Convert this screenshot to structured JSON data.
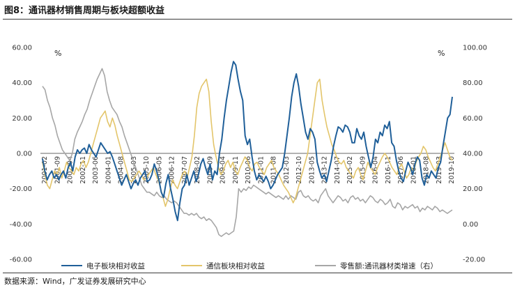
{
  "title": "图8：通讯器材销售周期与板块超额收益",
  "source": "数据来源：Wind，广发证券发展研究中心",
  "chart_data": {
    "type": "line",
    "left_unit": "%",
    "right_unit": "%",
    "left_ticks": [
      "60.00",
      "40.00",
      "20.00",
      "0.00",
      "-20.00",
      "-40.00",
      "-60.00"
    ],
    "right_ticks": [
      "100.00",
      "80.00",
      "60.00",
      "40.00",
      "20.00",
      "0.00",
      "-20.00"
    ],
    "ylim_left": [
      -60,
      60
    ],
    "ylim_right": [
      -20,
      100
    ],
    "x_labels": [
      "2001-02",
      "2001-09",
      "2002-04",
      "2002-11",
      "2003-06",
      "2004-01",
      "2004-08",
      "2005-03",
      "2005-10",
      "2006-05",
      "2006-12",
      "2007-07",
      "2008-02",
      "2008-09",
      "2009-04",
      "2009-11",
      "2010-06",
      "2011-01",
      "2011-08",
      "2012-03",
      "2012-10",
      "2013-05",
      "2013-12",
      "2014-07",
      "2015-02",
      "2015-09",
      "2016-04",
      "2016-11",
      "2017-06",
      "2018-01",
      "2018-08",
      "2019-03",
      "2019-10"
    ],
    "series": [
      {
        "name": "电子板块相对收益",
        "axis": "left",
        "color": "#1f5f99",
        "values": [
          -3,
          -10,
          -15,
          -12,
          -10,
          -14,
          -12,
          -15,
          -12,
          -10,
          -14,
          -8,
          -5,
          -10,
          -2,
          2,
          0,
          2,
          3,
          0,
          5,
          2,
          0,
          -2,
          2,
          6,
          4,
          2,
          0,
          1,
          -2,
          -6,
          -10,
          -14,
          -18,
          -15,
          -12,
          -16,
          -20,
          -17,
          -15,
          -18,
          -14,
          -12,
          -10,
          -16,
          -15,
          -12,
          -6,
          -10,
          -15,
          -22,
          -25,
          -17,
          -12,
          -20,
          -26,
          -33,
          -38,
          -28,
          -20,
          -18,
          -12,
          -18,
          -14,
          -10,
          -16,
          -12,
          -6,
          -3,
          -8,
          -12,
          -6,
          -15,
          -10,
          -12,
          0,
          8,
          20,
          30,
          38,
          46,
          52,
          50,
          42,
          35,
          30,
          10,
          5,
          8,
          -2,
          -10,
          -15,
          -12,
          -14,
          -16,
          -13,
          -16,
          -20,
          -18,
          -15,
          -12,
          -10,
          -8,
          0,
          10,
          20,
          32,
          40,
          45,
          38,
          28,
          20,
          12,
          8,
          14,
          12,
          8,
          -5,
          -10,
          -14,
          -12,
          -16,
          -10,
          -4,
          4,
          10,
          15,
          14,
          12,
          16,
          15,
          12,
          6,
          6,
          14,
          10,
          8,
          12,
          4,
          -2,
          -8,
          -2,
          8,
          6,
          12,
          10,
          16,
          14,
          18,
          6,
          4,
          -4,
          -10,
          -14,
          -16,
          -10,
          -5,
          -8,
          -12,
          -6,
          -2,
          -4,
          -14,
          -18,
          -12,
          -14,
          -10,
          -12,
          -14,
          -8,
          -5,
          4,
          12,
          20,
          22,
          32
        ]
      },
      {
        "name": "通信板块相对收益",
        "axis": "left",
        "color": "#e3c56a",
        "values": [
          -5,
          -12,
          -18,
          -20,
          -15,
          -10,
          -12,
          -8,
          -14,
          -10,
          -5,
          -8,
          -10,
          -12,
          -8,
          -10,
          -6,
          -4,
          -8,
          -5,
          0,
          5,
          10,
          15,
          20,
          22,
          24,
          18,
          15,
          20,
          16,
          10,
          5,
          0,
          -5,
          -10,
          -15,
          -16,
          -14,
          -12,
          -10,
          -12,
          -15,
          -14,
          -12,
          -10,
          -8,
          -12,
          -15,
          -20,
          -25,
          -30,
          -26,
          -20,
          -15,
          -18,
          -20,
          -16,
          -12,
          -10,
          -14,
          -8,
          -2,
          10,
          26,
          34,
          38,
          40,
          42,
          35,
          18,
          5,
          -2,
          -8,
          -12,
          -10,
          -6,
          -4,
          -8,
          -5,
          -10,
          -12,
          -8,
          -5,
          -2,
          -4,
          -8,
          -10,
          -6,
          -5,
          -8,
          -10,
          -12,
          -8,
          -6,
          -4,
          -8,
          -10,
          -12,
          -15,
          -18,
          -20,
          -22,
          -25,
          -28,
          -25,
          -20,
          -15,
          -10,
          -5,
          0,
          10,
          20,
          30,
          40,
          42,
          30,
          22,
          15,
          10,
          5,
          2,
          -2,
          -5,
          -6,
          -4,
          -8,
          -10,
          -12,
          -14,
          -10,
          -8,
          -12,
          -15,
          -10,
          -5,
          -8,
          -10,
          -12,
          -8,
          -5,
          -2,
          0,
          -2,
          -5,
          -8,
          -10,
          -12,
          -8,
          -6,
          -10,
          -14,
          -12,
          -8,
          -10,
          -5,
          -2,
          0,
          4,
          2,
          -2,
          -5,
          -8,
          -10,
          -6,
          -2,
          2,
          6,
          2,
          -2,
          -4
        ]
      },
      {
        "name": "零售额:通讯器材类增速（右）",
        "axis": "right",
        "color": "#a6a6a6",
        "values": [
          78,
          76,
          70,
          66,
          60,
          56,
          50,
          46,
          42,
          40,
          38,
          36,
          40,
          48,
          52,
          55,
          58,
          62,
          65,
          70,
          74,
          78,
          82,
          85,
          88,
          84,
          75,
          70,
          66,
          64,
          62,
          58,
          55,
          50,
          46,
          42,
          38,
          34,
          30,
          26,
          22,
          20,
          18,
          18,
          17,
          16,
          18,
          16,
          15,
          16,
          14,
          13,
          12,
          13,
          12,
          10,
          8,
          6,
          6,
          5,
          6,
          5,
          6,
          4,
          3,
          4,
          2,
          3,
          2,
          0,
          -2,
          -6,
          -7,
          -6,
          -5,
          -6,
          -5,
          -4,
          4,
          20,
          18,
          20,
          19,
          21,
          20,
          22,
          21,
          20,
          19,
          18,
          17,
          18,
          17,
          16,
          15,
          16,
          15,
          14,
          16,
          14,
          16,
          15,
          14,
          18,
          19,
          16,
          15,
          16,
          14,
          13,
          14,
          12,
          16,
          18,
          20,
          16,
          14,
          12,
          14,
          16,
          15,
          13,
          14,
          12,
          15,
          16,
          14,
          15,
          13,
          14,
          12,
          14,
          16,
          15,
          13,
          12,
          14,
          13,
          11,
          12,
          14,
          10,
          9,
          12,
          11,
          8,
          10,
          9,
          10,
          11,
          9,
          10,
          7,
          9,
          8,
          10,
          9,
          8,
          10,
          9,
          7,
          8,
          7,
          6,
          7,
          8
        ]
      }
    ]
  }
}
